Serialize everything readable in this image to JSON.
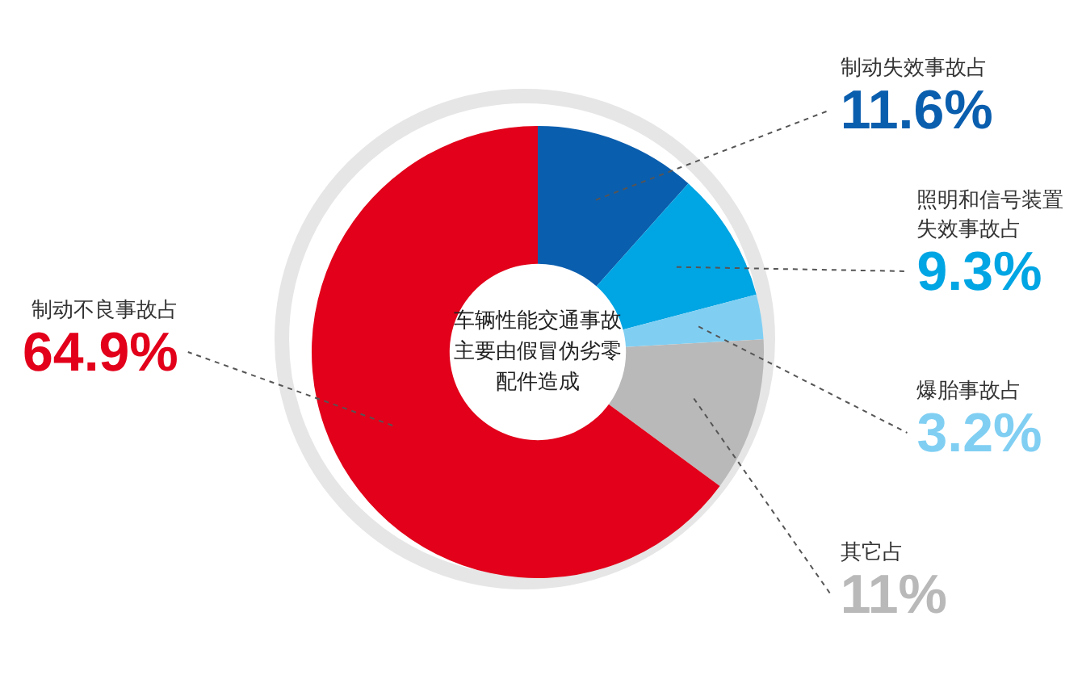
{
  "chart_data": {
    "type": "donut",
    "title": "车辆性能交通事故主要由假冒伪劣零配件造成",
    "categories": [
      "制动失效事故占",
      "照明和信号装置失效事故占",
      "爆胎事故占",
      "其它占",
      "制动不良事故占"
    ],
    "values": [
      11.6,
      9.3,
      3.2,
      11,
      64.9
    ],
    "value_labels": [
      "11.6%",
      "9.3%",
      "3.2%",
      "11%",
      "64.9%"
    ],
    "colors": [
      "#0a5eae",
      "#00a5e3",
      "#80cff3",
      "#b9b9b9",
      "#e2001a"
    ],
    "legend": false
  }
}
